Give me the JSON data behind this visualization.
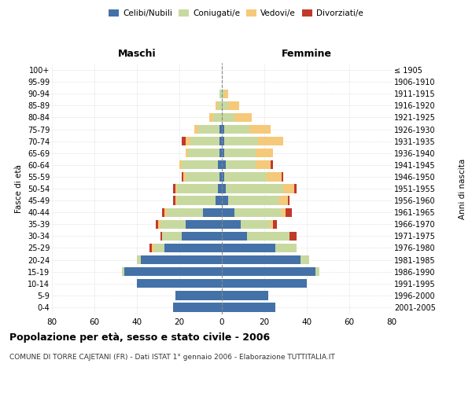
{
  "age_groups": [
    "0-4",
    "5-9",
    "10-14",
    "15-19",
    "20-24",
    "25-29",
    "30-34",
    "35-39",
    "40-44",
    "45-49",
    "50-54",
    "55-59",
    "60-64",
    "65-69",
    "70-74",
    "75-79",
    "80-84",
    "85-89",
    "90-94",
    "95-99",
    "100+"
  ],
  "birth_years": [
    "2001-2005",
    "1996-2000",
    "1991-1995",
    "1986-1990",
    "1981-1985",
    "1976-1980",
    "1971-1975",
    "1966-1970",
    "1961-1965",
    "1956-1960",
    "1951-1955",
    "1946-1950",
    "1941-1945",
    "1936-1940",
    "1931-1935",
    "1926-1930",
    "1921-1925",
    "1916-1920",
    "1911-1915",
    "1906-1910",
    "≤ 1905"
  ],
  "males": {
    "celibe": [
      23,
      22,
      40,
      46,
      38,
      27,
      19,
      17,
      9,
      3,
      2,
      1,
      2,
      1,
      1,
      1,
      0,
      0,
      0,
      0,
      0
    ],
    "coniugato": [
      0,
      0,
      0,
      1,
      2,
      5,
      9,
      12,
      17,
      18,
      19,
      16,
      17,
      15,
      14,
      10,
      4,
      2,
      1,
      0,
      0
    ],
    "vedovo": [
      0,
      0,
      0,
      0,
      0,
      1,
      0,
      1,
      1,
      1,
      1,
      1,
      1,
      1,
      2,
      2,
      2,
      1,
      0,
      0,
      0
    ],
    "divorziato": [
      0,
      0,
      0,
      0,
      0,
      1,
      1,
      1,
      1,
      1,
      1,
      1,
      0,
      0,
      2,
      0,
      0,
      0,
      0,
      0,
      0
    ]
  },
  "females": {
    "nubile": [
      25,
      22,
      40,
      44,
      37,
      25,
      12,
      9,
      6,
      3,
      2,
      1,
      2,
      1,
      1,
      1,
      0,
      0,
      0,
      0,
      0
    ],
    "coniugata": [
      0,
      0,
      0,
      2,
      4,
      10,
      20,
      14,
      22,
      24,
      27,
      20,
      14,
      15,
      16,
      12,
      6,
      3,
      1,
      0,
      0
    ],
    "vedova": [
      0,
      0,
      0,
      0,
      0,
      0,
      0,
      1,
      2,
      4,
      5,
      7,
      7,
      8,
      12,
      10,
      8,
      5,
      2,
      0,
      0
    ],
    "divorziata": [
      0,
      0,
      0,
      0,
      0,
      0,
      3,
      2,
      3,
      1,
      1,
      1,
      1,
      0,
      0,
      0,
      0,
      0,
      0,
      0,
      0
    ]
  },
  "color_celibe": "#4472A8",
  "color_coniugato": "#C8D9A0",
  "color_vedovo": "#F5C97A",
  "color_divorziato": "#C0392B",
  "xlim": 80,
  "title": "Popolazione per età, sesso e stato civile - 2006",
  "subtitle": "COMUNE DI TORRE CAJETANI (FR) - Dati ISTAT 1° gennaio 2006 - Elaborazione TUTTITALIA.IT",
  "ylabel_left": "Fasce di età",
  "ylabel_right": "Anni di nascita",
  "xlabel_left": "Maschi",
  "xlabel_right": "Femmine"
}
